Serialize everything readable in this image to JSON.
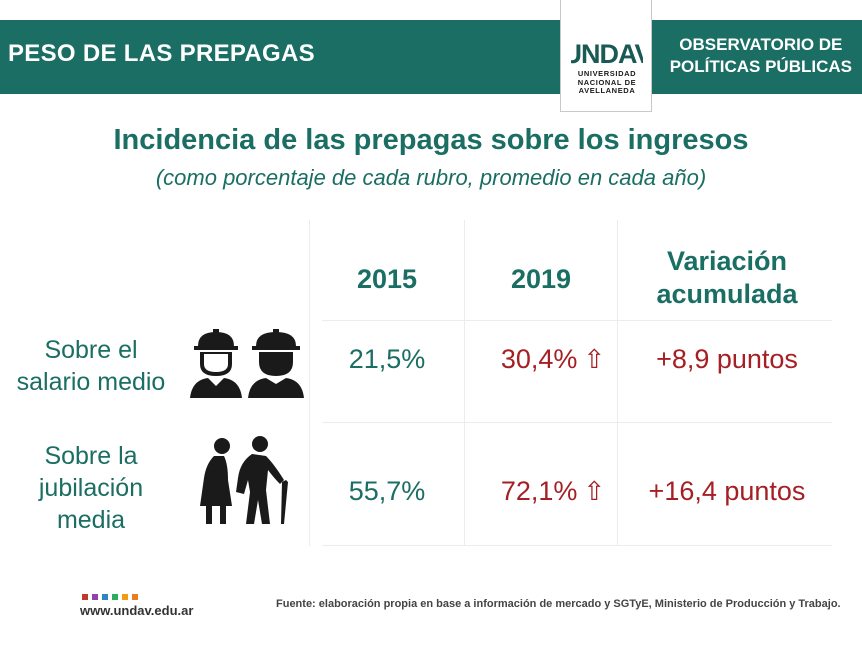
{
  "header": {
    "left_title": "PESO DE LAS PREPAGAS",
    "right_line1": "OBSERVATORIO DE",
    "right_line2": "POLÍTICAS PÚBLICAS",
    "logo_mark": "UNDAV",
    "logo_line1": "UNIVERSIDAD",
    "logo_line2": "NACIONAL DE",
    "logo_line3": "AVELLANEDA"
  },
  "title": "Incidencia de las prepagas sobre los ingresos",
  "subtitle": "(como porcentaje de cada rubro, promedio en cada año)",
  "columns": {
    "year1": "2015",
    "year2": "2019",
    "variation_line1": "Variación",
    "variation_line2": "acumulada"
  },
  "rows": [
    {
      "label_line1": "Sobre el",
      "label_line2": "salario medio",
      "label_line3": "",
      "icon": "workers-icon",
      "v2015": "21,5%",
      "v2019": "30,4%",
      "arrow": "⇧",
      "variation": "+8,9 puntos"
    },
    {
      "label_line1": "Sobre la",
      "label_line2": "jubilación",
      "label_line3": "media",
      "icon": "elderly-couple-icon",
      "v2015": "55,7%",
      "v2019": "72,1%",
      "arrow": "⇧",
      "variation": "+16,4 puntos"
    }
  ],
  "footer": {
    "url": "www.undav.edu.ar",
    "source": "Fuente: elaboración propia en base a información de mercado y SGTyE, Ministerio de Producción y Trabajo.",
    "dot_colors": [
      "#c0392b",
      "#8e44ad",
      "#2e86c1",
      "#27ae60",
      "#f39c12",
      "#e67e22"
    ]
  },
  "colors": {
    "teal": "#1a6e63",
    "red": "#a51f24"
  }
}
